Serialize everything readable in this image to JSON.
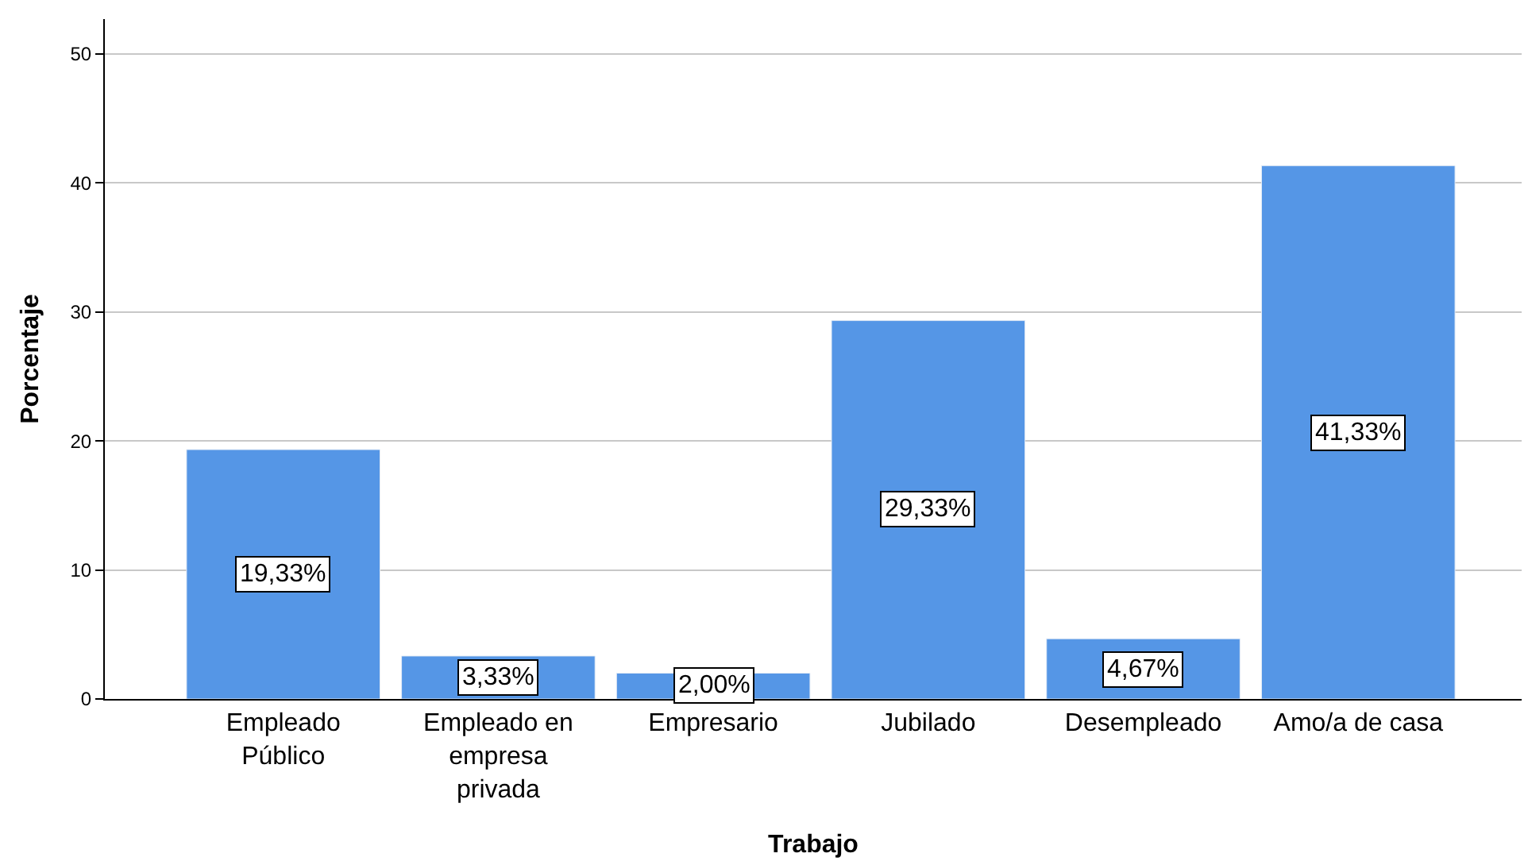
{
  "chart_data": {
    "type": "bar",
    "xlabel": "Trabajo",
    "ylabel": "Porcentaje",
    "categories": [
      "Empleado Público",
      "Empleado en empresa privada",
      "Empresario",
      "Jubilado",
      "Desempleado",
      "Amo/a de casa"
    ],
    "values": [
      19.33,
      3.33,
      2.0,
      29.33,
      4.67,
      41.33
    ],
    "value_labels": [
      "19,33%",
      "3,33%",
      "2,00%",
      "29,33%",
      "4,67%",
      "41,33%"
    ],
    "color": "#5596e6",
    "ylim": [
      0,
      52.7
    ],
    "yticks": [
      0,
      10,
      20,
      30,
      40,
      50
    ],
    "grid": "y"
  }
}
